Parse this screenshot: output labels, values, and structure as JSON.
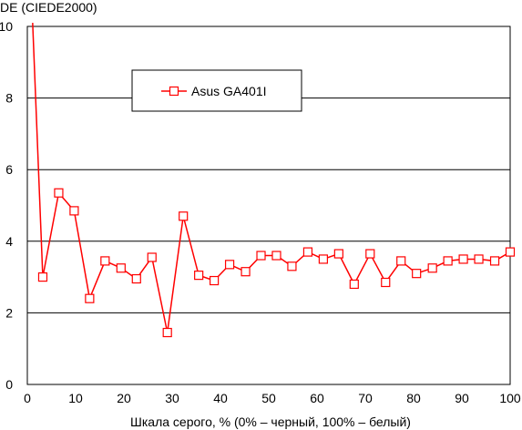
{
  "chart_data": {
    "type": "line",
    "title": "",
    "ylabel": "DE (CIEDE2000)",
    "xlabel": "Шкала серого, % (0% – черный, 100% – белый)",
    "xlim": [
      0,
      100
    ],
    "ylim": [
      0,
      10
    ],
    "xticks": [
      0,
      10,
      20,
      30,
      40,
      50,
      60,
      70,
      80,
      90,
      100
    ],
    "yticks": [
      0,
      2,
      4,
      6,
      8,
      10
    ],
    "grid": "horizontal",
    "legend_position": "top-left",
    "series": [
      {
        "name": "Asus GA401I",
        "color": "#ff0000",
        "marker": "open-square",
        "x": [
          1.1,
          3.2,
          6.5,
          9.7,
          12.9,
          16.1,
          19.4,
          22.6,
          25.8,
          29.0,
          32.3,
          35.5,
          38.7,
          41.9,
          45.2,
          48.4,
          51.6,
          54.8,
          58.1,
          61.3,
          64.5,
          67.7,
          71.0,
          74.2,
          77.4,
          80.6,
          83.9,
          87.1,
          90.3,
          93.5,
          96.8,
          100.0
        ],
        "values": [
          10.1,
          3.0,
          5.35,
          4.85,
          2.4,
          3.45,
          3.25,
          2.95,
          3.55,
          1.45,
          4.7,
          3.05,
          2.9,
          3.35,
          3.15,
          3.6,
          3.6,
          3.3,
          3.7,
          3.5,
          3.65,
          2.8,
          3.65,
          2.85,
          3.45,
          3.1,
          3.25,
          3.45,
          3.5,
          3.5,
          3.45,
          3.7
        ]
      }
    ]
  }
}
